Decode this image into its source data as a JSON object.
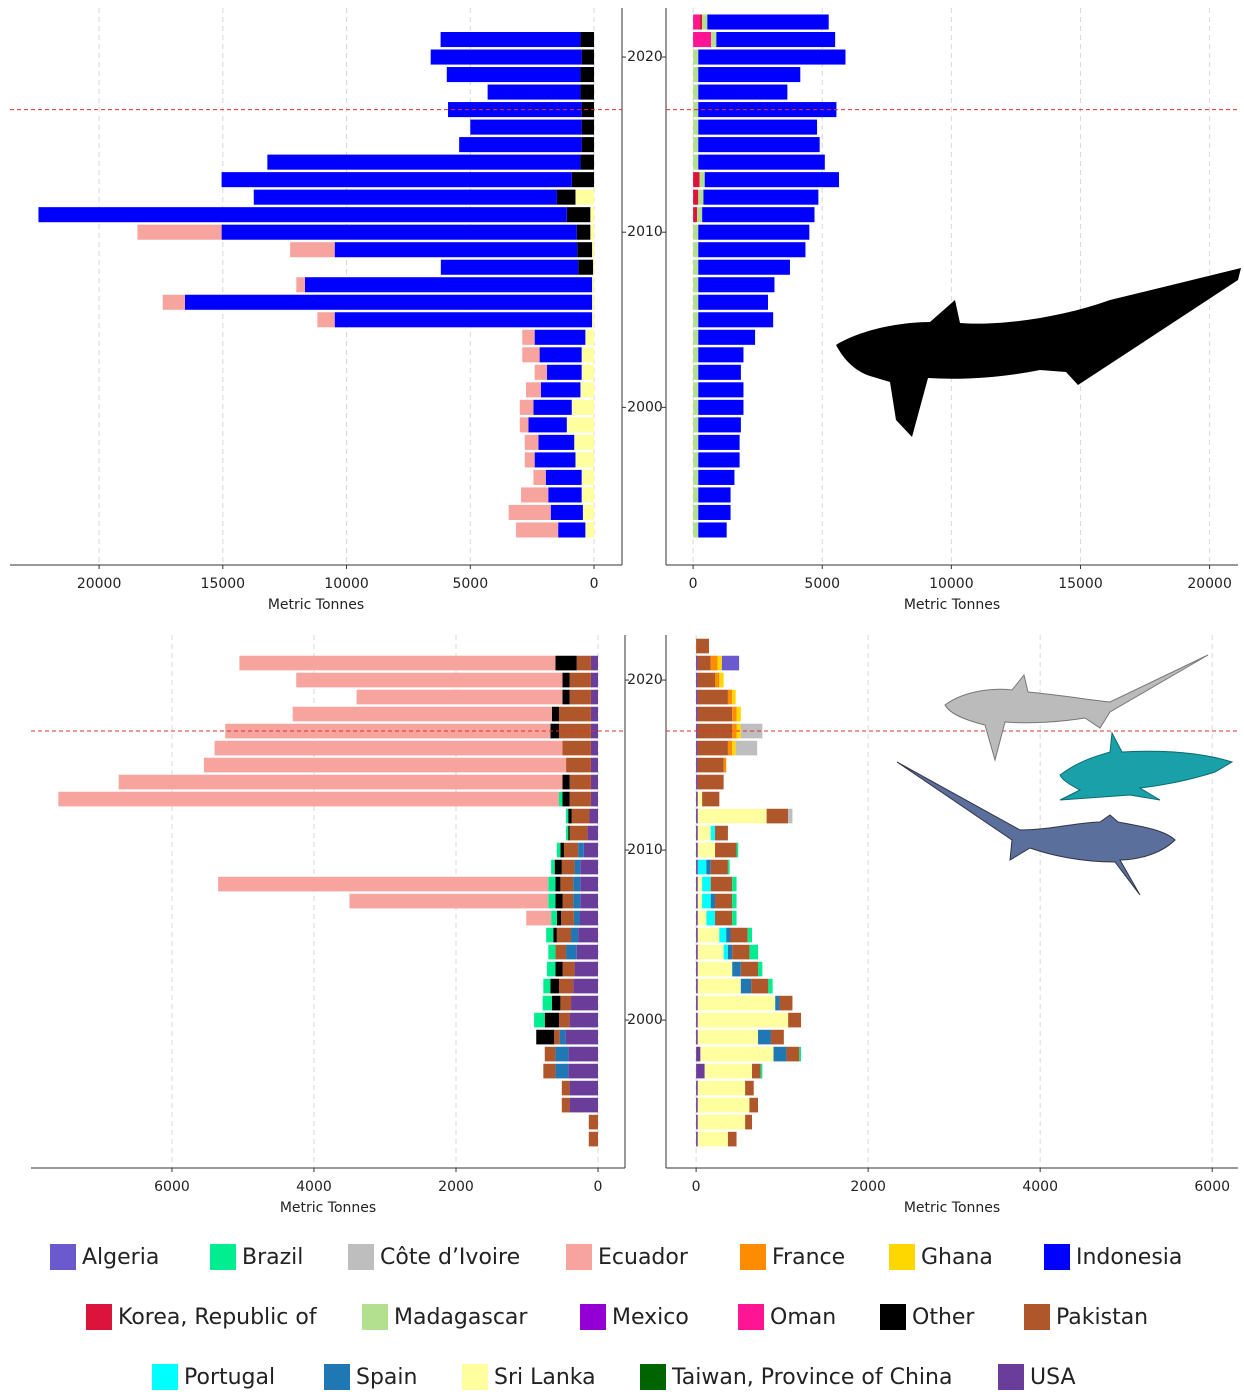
{
  "chart_data": [
    {
      "type": "bar",
      "orientation": "horizontal",
      "x_reversed": true,
      "xlabel": "Metric Tonnes",
      "xlim": [
        -1130,
        23600
      ],
      "xticks": [
        0,
        5000,
        10000,
        15000,
        20000
      ],
      "ylim": [
        1991,
        2022.8
      ],
      "yticks": [
        2000,
        2010,
        2020
      ],
      "grid": true,
      "reference_line": 2017,
      "y": [
        1993,
        1994,
        1995,
        1996,
        1997,
        1998,
        1999,
        2000,
        2001,
        2002,
        2003,
        2004,
        2005,
        2006,
        2007,
        2008,
        2009,
        2010,
        2011,
        2012,
        2013,
        2014,
        2015,
        2016,
        2017,
        2018,
        2019,
        2020,
        2021
      ],
      "series": [
        {
          "name": "Sri Lanka",
          "values": [
            350,
            450,
            500,
            500,
            750,
            800,
            1100,
            900,
            550,
            500,
            500,
            350,
            80,
            80,
            80,
            40,
            80,
            150,
            150,
            750,
            0,
            0,
            0,
            0,
            0,
            0,
            0,
            0,
            0
          ]
        },
        {
          "name": "Other",
          "values": [
            0,
            0,
            0,
            0,
            0,
            0,
            0,
            0,
            0,
            0,
            0,
            0,
            0,
            0,
            0,
            600,
            600,
            550,
            950,
            750,
            900,
            550,
            500,
            500,
            500,
            550,
            550,
            500,
            550
          ]
        },
        {
          "name": "Indonesia",
          "values": [
            1100,
            1300,
            1350,
            1450,
            1650,
            1450,
            1550,
            1550,
            1600,
            1400,
            1700,
            2050,
            10400,
            16450,
            11600,
            5550,
            9800,
            14350,
            21350,
            12250,
            14150,
            12650,
            4950,
            4500,
            5400,
            3750,
            5400,
            6100,
            5650
          ]
        },
        {
          "name": "Ecuador",
          "values": [
            1700,
            1700,
            1100,
            500,
            400,
            550,
            350,
            550,
            600,
            500,
            700,
            500,
            700,
            900,
            350,
            0,
            1800,
            3400,
            0,
            0,
            0,
            0,
            0,
            0,
            0,
            0,
            0,
            0,
            0
          ]
        }
      ]
    },
    {
      "type": "bar",
      "orientation": "horizontal",
      "x_reversed": false,
      "xlabel": "Metric Tonnes",
      "xlim": [
        -1050,
        21100
      ],
      "xticks": [
        0,
        5000,
        10000,
        15000,
        20000
      ],
      "ylim": [
        1991,
        2022.8
      ],
      "yticks": [
        2000,
        2010,
        2020
      ],
      "grid": true,
      "reference_line": 2017,
      "y": [
        1993,
        1994,
        1995,
        1996,
        1997,
        1998,
        1999,
        2000,
        2001,
        2002,
        2003,
        2004,
        2005,
        2006,
        2007,
        2008,
        2009,
        2010,
        2011,
        2012,
        2013,
        2014,
        2015,
        2016,
        2017,
        2018,
        2019,
        2020,
        2021,
        2022
      ],
      "series": [
        {
          "name": "Oman",
          "values": [
            0,
            0,
            0,
            0,
            0,
            0,
            0,
            0,
            0,
            0,
            0,
            0,
            0,
            0,
            0,
            0,
            0,
            0,
            0,
            0,
            0,
            0,
            0,
            0,
            0,
            0,
            0,
            0,
            700,
            250
          ]
        },
        {
          "name": "Korea, Republic of",
          "values": [
            0,
            0,
            0,
            0,
            0,
            0,
            0,
            0,
            0,
            0,
            0,
            0,
            0,
            0,
            0,
            0,
            0,
            0,
            150,
            200,
            250,
            0,
            0,
            0,
            0,
            0,
            0,
            0,
            0,
            100
          ]
        },
        {
          "name": "Madagascar",
          "values": [
            200,
            200,
            200,
            200,
            200,
            200,
            200,
            200,
            200,
            200,
            200,
            200,
            200,
            200,
            200,
            200,
            200,
            200,
            200,
            200,
            200,
            200,
            200,
            200,
            200,
            200,
            200,
            200,
            200,
            200
          ]
        },
        {
          "name": "Indonesia",
          "values": [
            1100,
            1250,
            1250,
            1400,
            1600,
            1600,
            1650,
            1750,
            1750,
            1650,
            1750,
            2200,
            2900,
            2700,
            2950,
            3550,
            4150,
            4300,
            4350,
            4450,
            5200,
            4900,
            4700,
            4600,
            5350,
            3450,
            3950,
            5700,
            4600,
            4700
          ]
        }
      ]
    },
    {
      "type": "bar",
      "orientation": "horizontal",
      "x_reversed": true,
      "xlabel": "Metric Tonnes",
      "xlim": [
        -380,
        7985
      ],
      "xticks": [
        0,
        2000,
        4000,
        6000
      ],
      "ylim": [
        1991.3,
        2022.65
      ],
      "yticks": [
        2000,
        2010,
        2020
      ],
      "grid": true,
      "reference_line": 2017,
      "y": [
        1993,
        1994,
        1995,
        1996,
        1997,
        1998,
        1999,
        2000,
        2001,
        2002,
        2003,
        2004,
        2005,
        2006,
        2007,
        2008,
        2009,
        2010,
        2011,
        2012,
        2013,
        2014,
        2015,
        2016,
        2017,
        2018,
        2019,
        2020,
        2021
      ],
      "series": [
        {
          "name": "USA",
          "values": [
            0,
            0,
            400,
            400,
            420,
            420,
            460,
            400,
            380,
            350,
            330,
            300,
            280,
            260,
            250,
            250,
            250,
            200,
            150,
            120,
            100,
            100,
            100,
            100,
            100,
            100,
            100,
            100,
            100
          ]
        },
        {
          "name": "Spain",
          "values": [
            0,
            0,
            0,
            0,
            180,
            180,
            80,
            0,
            0,
            0,
            0,
            150,
            100,
            80,
            100,
            100,
            80,
            80,
            0,
            0,
            0,
            0,
            0,
            0,
            0,
            0,
            0,
            0,
            0
          ]
        },
        {
          "name": "Pakistan",
          "values": [
            130,
            130,
            110,
            110,
            170,
            150,
            80,
            150,
            150,
            200,
            170,
            150,
            200,
            180,
            150,
            180,
            180,
            200,
            250,
            250,
            300,
            300,
            350,
            400,
            450,
            450,
            300,
            300,
            200
          ]
        },
        {
          "name": "Other",
          "values": [
            0,
            0,
            0,
            0,
            0,
            0,
            250,
            200,
            120,
            120,
            100,
            0,
            50,
            60,
            100,
            70,
            100,
            50,
            20,
            50,
            100,
            100,
            0,
            0,
            120,
            100,
            100,
            100,
            300
          ]
        },
        {
          "name": "Brazil",
          "values": [
            0,
            0,
            0,
            0,
            0,
            0,
            0,
            150,
            130,
            100,
            120,
            100,
            100,
            80,
            100,
            100,
            50,
            50,
            30,
            30,
            50,
            0,
            0,
            0,
            0,
            0,
            0,
            0,
            0
          ]
        },
        {
          "name": "Ecuador",
          "values": [
            0,
            0,
            0,
            0,
            0,
            0,
            0,
            0,
            0,
            0,
            0,
            0,
            0,
            350,
            2800,
            4650,
            0,
            0,
            0,
            0,
            7050,
            6250,
            5100,
            4900,
            4580,
            3650,
            2900,
            3750,
            4450
          ]
        }
      ]
    },
    {
      "type": "bar",
      "orientation": "horizontal",
      "x_reversed": false,
      "xlabel": "Metric Tonnes",
      "xlim": [
        -350,
        6300
      ],
      "xticks": [
        0,
        2000,
        4000,
        6000
      ],
      "ylim": [
        1991.3,
        2022.65
      ],
      "yticks": [
        2000,
        2010,
        2020
      ],
      "grid": true,
      "reference_line": 2017,
      "y": [
        1993,
        1994,
        1995,
        1996,
        1997,
        1998,
        1999,
        2000,
        2001,
        2002,
        2003,
        2004,
        2005,
        2006,
        2007,
        2008,
        2009,
        2010,
        2011,
        2012,
        2013,
        2014,
        2015,
        2016,
        2017,
        2018,
        2019,
        2020,
        2021,
        2022
      ],
      "series": [
        {
          "name": "USA",
          "values": [
            20,
            20,
            20,
            20,
            100,
            50,
            20,
            20,
            20,
            20,
            20,
            20,
            20,
            20,
            20,
            20,
            20,
            20,
            20,
            20,
            20,
            20,
            20,
            20,
            20,
            20,
            20,
            20,
            20,
            0
          ]
        },
        {
          "name": "Sri Lanka",
          "values": [
            350,
            550,
            600,
            550,
            550,
            850,
            700,
            1050,
            900,
            500,
            400,
            300,
            250,
            100,
            50,
            50,
            0,
            200,
            150,
            800,
            50,
            0,
            0,
            0,
            0,
            0,
            0,
            0,
            0,
            0
          ]
        },
        {
          "name": "Portugal",
          "values": [
            0,
            0,
            0,
            0,
            0,
            0,
            0,
            0,
            0,
            0,
            0,
            50,
            80,
            100,
            100,
            100,
            100,
            0,
            50,
            0,
            0,
            0,
            0,
            0,
            0,
            0,
            0,
            0,
            0,
            0
          ]
        },
        {
          "name": "Spain",
          "values": [
            0,
            0,
            0,
            0,
            0,
            150,
            150,
            0,
            50,
            120,
            100,
            50,
            50,
            0,
            50,
            0,
            50,
            0,
            0,
            0,
            0,
            0,
            0,
            0,
            0,
            0,
            0,
            0,
            0,
            0
          ]
        },
        {
          "name": "Pakistan",
          "values": [
            100,
            80,
            100,
            100,
            100,
            150,
            150,
            150,
            150,
            200,
            200,
            200,
            200,
            200,
            200,
            250,
            200,
            250,
            150,
            250,
            200,
            300,
            300,
            350,
            400,
            400,
            350,
            200,
            150,
            150
          ]
        },
        {
          "name": "Brazil",
          "values": [
            0,
            0,
            0,
            0,
            20,
            20,
            0,
            0,
            0,
            50,
            50,
            100,
            50,
            50,
            50,
            50,
            20,
            20,
            0,
            0,
            0,
            0,
            0,
            0,
            0,
            0,
            0,
            0,
            0,
            0
          ]
        },
        {
          "name": "France",
          "values": [
            0,
            0,
            0,
            0,
            0,
            0,
            0,
            0,
            0,
            0,
            0,
            0,
            0,
            0,
            0,
            0,
            0,
            0,
            0,
            0,
            0,
            0,
            30,
            50,
            50,
            50,
            50,
            50,
            80,
            0
          ]
        },
        {
          "name": "Ghana",
          "values": [
            0,
            0,
            0,
            0,
            0,
            0,
            0,
            0,
            0,
            0,
            0,
            0,
            0,
            0,
            0,
            0,
            0,
            0,
            0,
            0,
            0,
            0,
            0,
            40,
            50,
            50,
            40,
            50,
            50,
            0
          ]
        },
        {
          "name": "Côte d’Ivoire",
          "values": [
            0,
            0,
            0,
            0,
            0,
            0,
            0,
            0,
            0,
            0,
            0,
            0,
            0,
            0,
            0,
            0,
            0,
            0,
            0,
            50,
            0,
            0,
            0,
            250,
            250,
            0,
            0,
            0,
            0,
            0
          ]
        },
        {
          "name": "Algeria",
          "values": [
            0,
            0,
            0,
            0,
            0,
            0,
            0,
            0,
            0,
            0,
            0,
            0,
            0,
            0,
            0,
            0,
            0,
            0,
            0,
            0,
            0,
            0,
            0,
            0,
            0,
            0,
            0,
            0,
            200,
            0
          ]
        }
      ]
    }
  ],
  "legend": [
    {
      "name": "Algeria",
      "color": "#6a5acd"
    },
    {
      "name": "Brazil",
      "color": "#00ee90"
    },
    {
      "name": "Côte d’Ivoire",
      "color": "#bebebe"
    },
    {
      "name": "Ecuador",
      "color": "#f7a39e"
    },
    {
      "name": "France",
      "color": "#ff8c00"
    },
    {
      "name": "Ghana",
      "color": "#ffd700"
    },
    {
      "name": "Indonesia",
      "color": "#0000ff"
    },
    {
      "name": "Korea, Republic of",
      "color": "#dc143c"
    },
    {
      "name": "Madagascar",
      "color": "#b3e08f"
    },
    {
      "name": "Mexico",
      "color": "#9400d3"
    },
    {
      "name": "Oman",
      "color": "#ff1493"
    },
    {
      "name": "Other",
      "color": "#000000"
    },
    {
      "name": "Pakistan",
      "color": "#b0562b"
    },
    {
      "name": "Portugal",
      "color": "#00ffff"
    },
    {
      "name": "Spain",
      "color": "#1f78b4"
    },
    {
      "name": "Sri Lanka",
      "color": "#ffffa0"
    },
    {
      "name": "Taiwan, Province of China",
      "color": "#006400"
    },
    {
      "name": "USA",
      "color": "#6a3d9a"
    }
  ]
}
